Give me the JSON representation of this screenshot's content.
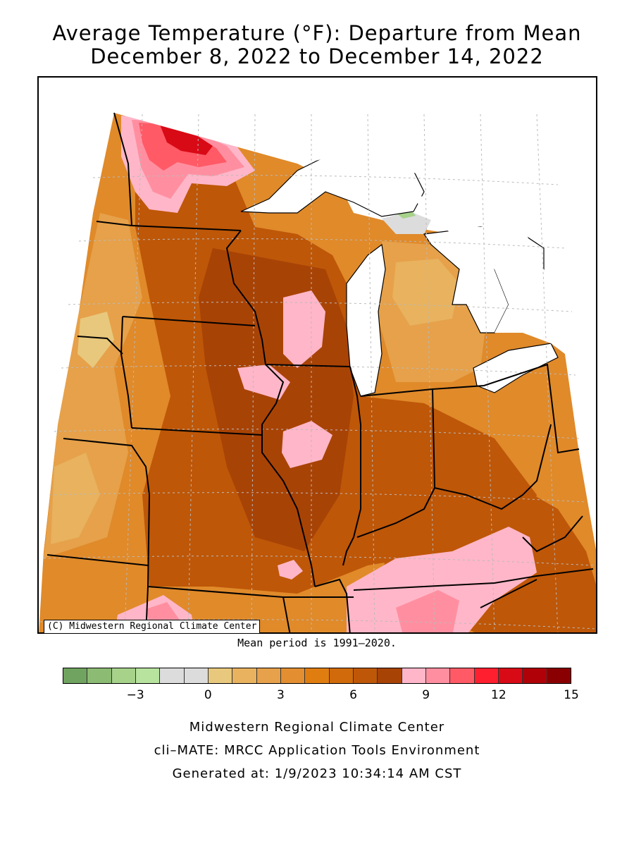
{
  "title_line1": "Average Temperature (°F): Departure from Mean",
  "title_line2": "December 8, 2022 to December 14, 2022",
  "copyright": "(C) Midwestern Regional Climate Center",
  "mean_note": "Mean period is 1991–2020.",
  "legend": {
    "colors": [
      "#6fa35f",
      "#8cbb73",
      "#a6d28a",
      "#b7e39f",
      "#dcdcdc",
      "#dcdcdc",
      "#e8c87c",
      "#e8b25e",
      "#e6a14a",
      "#e38e31",
      "#e07d10",
      "#d06a0a",
      "#be5708",
      "#a84306",
      "#ffb6c8",
      "#ff8fa0",
      "#ff5a66",
      "#ff1f2e",
      "#d80a16",
      "#b00008",
      "#8a0002"
    ],
    "ticks": [
      {
        "label": "−3",
        "value": -3
      },
      {
        "label": "0",
        "value": 0
      },
      {
        "label": "3",
        "value": 3
      },
      {
        "label": "6",
        "value": 6
      },
      {
        "label": "9",
        "value": 9
      },
      {
        "label": "12",
        "value": 12
      },
      {
        "label": "15",
        "value": 15
      }
    ]
  },
  "footer": {
    "line1": "Midwestern Regional Climate Center",
    "line2": "cli–MATE: MRCC Application Tools Environment",
    "line3": "Generated at: 1/9/2023 10:34:14 AM CST"
  }
}
